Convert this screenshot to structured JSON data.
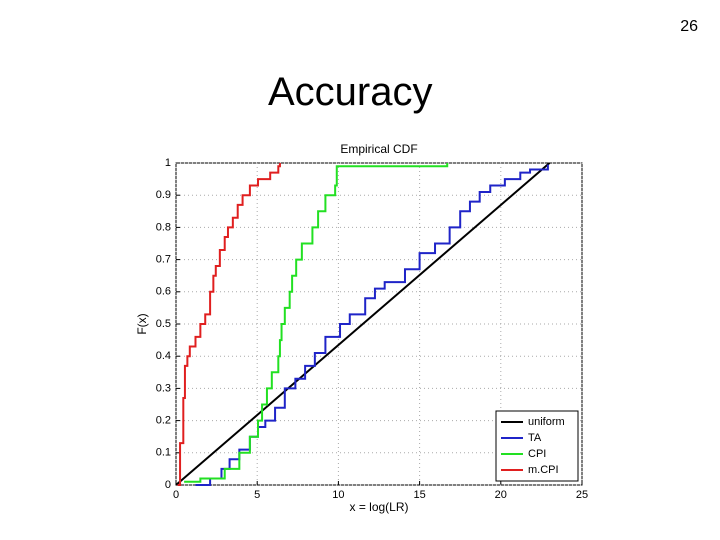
{
  "page_number": "26",
  "title": "Accuracy",
  "chart_data": {
    "type": "line",
    "step": "post",
    "title": "Empirical CDF",
    "x_label": "x = log(LR)",
    "y_label": "F(x)",
    "xlim": [
      0,
      25
    ],
    "xticks": [
      0,
      5,
      10,
      15,
      20,
      25
    ],
    "ylim": [
      0,
      1
    ],
    "yticks": [
      0,
      0.1,
      0.2,
      0.3,
      0.4,
      0.5,
      0.6,
      0.7,
      0.8,
      0.9,
      1
    ],
    "grid": true,
    "legend": "lower right",
    "series": [
      {
        "name": "uniform",
        "color": "#000000",
        "step": false,
        "x": [
          0,
          23
        ],
        "values": [
          0,
          1
        ]
      },
      {
        "name": "TA",
        "color": "#1f24c8",
        "x": [
          1.2,
          2.1,
          2.8,
          3.3,
          3.9,
          4.55,
          5.05,
          5.5,
          6.1,
          6.7,
          7.35,
          7.95,
          8.55,
          9.2,
          10.1,
          10.7,
          11.65,
          12.25,
          12.85,
          14.1,
          15.0,
          15.95,
          16.85,
          17.5,
          18.1,
          18.7,
          19.35,
          20.25,
          21.2,
          21.8,
          22.9
        ],
        "values": [
          0,
          0.02,
          0.05,
          0.08,
          0.11,
          0.15,
          0.18,
          0.2,
          0.24,
          0.3,
          0.33,
          0.37,
          0.41,
          0.46,
          0.5,
          0.53,
          0.58,
          0.61,
          0.63,
          0.67,
          0.72,
          0.75,
          0.8,
          0.85,
          0.88,
          0.91,
          0.93,
          0.95,
          0.97,
          0.98,
          0.995
        ]
      },
      {
        "name": "CPI",
        "color": "#22e022",
        "x": [
          0.5,
          1.5,
          3.0,
          3.9,
          4.55,
          5.05,
          5.3,
          5.6,
          5.9,
          6.3,
          6.4,
          6.5,
          6.7,
          7.0,
          7.15,
          7.4,
          7.75,
          8.4,
          8.75,
          9.2,
          9.8,
          9.9,
          16.7
        ],
        "values": [
          0.01,
          0.02,
          0.05,
          0.1,
          0.15,
          0.2,
          0.25,
          0.3,
          0.35,
          0.4,
          0.45,
          0.5,
          0.55,
          0.6,
          0.65,
          0.7,
          0.75,
          0.8,
          0.85,
          0.9,
          0.93,
          0.99,
          1
        ]
      },
      {
        "name": "m.CPI",
        "color": "#e01f1f",
        "x": [
          0.1,
          0.25,
          0.45,
          0.55,
          0.7,
          0.85,
          1.2,
          1.5,
          1.8,
          2.1,
          2.3,
          2.45,
          2.7,
          3.0,
          3.2,
          3.5,
          3.8,
          4.1,
          4.55,
          5.05,
          5.8,
          6.3,
          6.4
        ],
        "values": [
          0,
          0.13,
          0.27,
          0.37,
          0.4,
          0.43,
          0.46,
          0.5,
          0.53,
          0.6,
          0.65,
          0.68,
          0.73,
          0.77,
          0.8,
          0.83,
          0.87,
          0.9,
          0.93,
          0.95,
          0.97,
          0.99,
          1
        ]
      }
    ]
  }
}
